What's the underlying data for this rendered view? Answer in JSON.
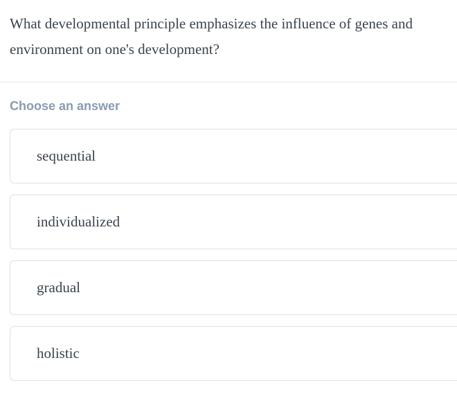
{
  "question": {
    "text": "What developmental principle emphasizes the influence of genes and environment on one's development?"
  },
  "answer_prompt": "Choose an answer",
  "answers": [
    {
      "label": "sequential"
    },
    {
      "label": "individualized"
    },
    {
      "label": "gradual"
    },
    {
      "label": "holistic"
    }
  ],
  "colors": {
    "text_primary": "#3a4350",
    "prompt": "#8a9bb0",
    "border": "#dbe1e8",
    "divider": "#e5e7eb",
    "background": "#ffffff"
  }
}
